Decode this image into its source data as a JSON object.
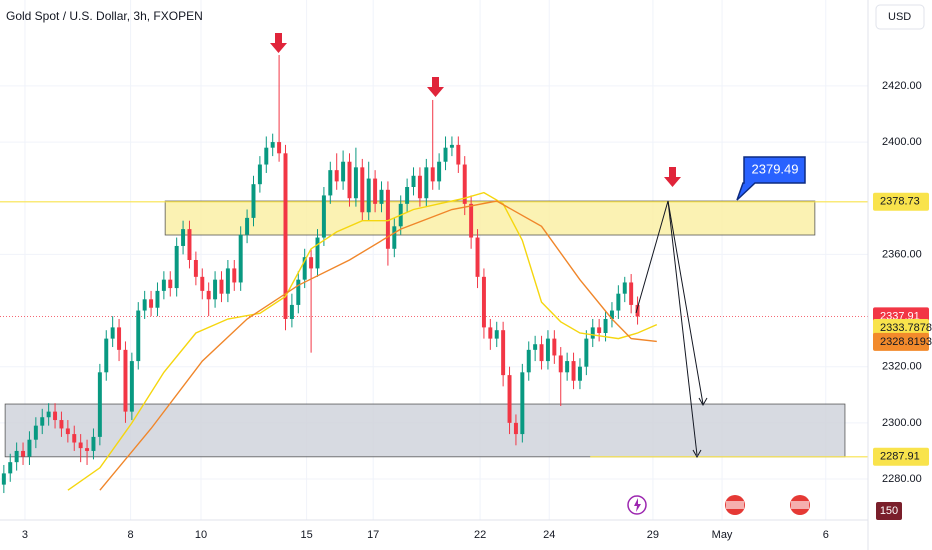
{
  "chart_data": {
    "type": "candlestick",
    "title": "Gold Spot / U.S. Dollar, 3h, FXOPEN",
    "currency": "USD",
    "volume_label": "150",
    "up_color": "#089981",
    "down_color": "#f23645",
    "grid": true,
    "xlim": [
      -0.6,
      135.0
    ],
    "ylim": [
      2265.4,
      2450.6
    ],
    "xticks": [
      {
        "value": 3.3,
        "label": "3"
      },
      {
        "value": 19.8,
        "label": "8"
      },
      {
        "value": 30.8,
        "label": "10"
      },
      {
        "value": 47.3,
        "label": "15"
      },
      {
        "value": 57.7,
        "label": "17"
      },
      {
        "value": 74.4,
        "label": "22"
      },
      {
        "value": 85.2,
        "label": "24"
      },
      {
        "value": 101.4,
        "label": "29"
      },
      {
        "value": 112.2,
        "label": "May"
      },
      {
        "value": 128.4,
        "label": "6"
      }
    ],
    "yticks": [
      {
        "value": 2280,
        "label": "2280.00"
      },
      {
        "value": 2300,
        "label": "2300.00"
      },
      {
        "value": 2320,
        "label": "2320.00"
      },
      {
        "value": 2360,
        "label": "2360.00"
      },
      {
        "value": 2400,
        "label": "2400.00"
      },
      {
        "value": 2420,
        "label": "2420.00"
      }
    ],
    "candles": {
      "open": [
        2278,
        2282,
        2286,
        2290,
        2288,
        2294,
        2299,
        2302,
        2304,
        2301,
        2298,
        2296,
        2293,
        2291,
        2290,
        2295,
        2318,
        2330,
        2334,
        2326,
        2304,
        2322,
        2340,
        2344,
        2341,
        2347,
        2351,
        2348,
        2363,
        2369,
        2358,
        2352,
        2347,
        2344,
        2351,
        2346,
        2355,
        2350,
        2367,
        2373,
        2385,
        2392,
        2398,
        2400,
        2396,
        2337,
        2342,
        2351,
        2359,
        2355,
        2366,
        2381,
        2390,
        2386,
        2393,
        2380,
        2391,
        2375,
        2387,
        2378,
        2383,
        2362,
        2370,
        2378,
        2384,
        2388,
        2380,
        2391,
        2386,
        2393,
        2398,
        2399,
        2392,
        2378,
        2366,
        2352,
        2334,
        2330,
        2333,
        2317,
        2300,
        2296,
        2318,
        2326,
        2328,
        2322,
        2330,
        2324,
        2318,
        2322,
        2315,
        2320,
        2330,
        2334,
        2332,
        2337,
        2340,
        2346,
        2350,
        2342
      ],
      "high": [
        2285,
        2289,
        2293,
        2293,
        2297,
        2302,
        2305,
        2307,
        2307,
        2304,
        2301,
        2299,
        2296,
        2294,
        2298,
        2321,
        2333,
        2338,
        2337,
        2329,
        2325,
        2343,
        2347,
        2347,
        2350,
        2354,
        2354,
        2366,
        2372,
        2372,
        2361,
        2355,
        2350,
        2354,
        2354,
        2358,
        2358,
        2370,
        2376,
        2388,
        2395,
        2402,
        2403,
        2431,
        2399,
        2346,
        2354,
        2362,
        2362,
        2369,
        2384,
        2393,
        2396,
        2397,
        2396,
        2398,
        2394,
        2393,
        2390,
        2386,
        2386,
        2373,
        2381,
        2387,
        2391,
        2391,
        2394,
        2415,
        2396,
        2402,
        2402,
        2402,
        2395,
        2381,
        2369,
        2355,
        2337,
        2336,
        2336,
        2320,
        2303,
        2321,
        2329,
        2331,
        2331,
        2333,
        2333,
        2327,
        2325,
        2325,
        2323,
        2333,
        2337,
        2337,
        2340,
        2343,
        2349,
        2352,
        2353,
        2345
      ],
      "low": [
        2275,
        2279,
        2283,
        2285,
        2285,
        2291,
        2296,
        2299,
        2298,
        2295,
        2293,
        2290,
        2286,
        2285,
        2287,
        2292,
        2315,
        2327,
        2322,
        2300,
        2301,
        2319,
        2337,
        2338,
        2338,
        2344,
        2345,
        2345,
        2360,
        2355,
        2349,
        2344,
        2338,
        2341,
        2343,
        2343,
        2347,
        2347,
        2364,
        2370,
        2382,
        2389,
        2395,
        2393,
        2333,
        2334,
        2339,
        2348,
        2325,
        2352,
        2363,
        2378,
        2383,
        2383,
        2377,
        2377,
        2372,
        2372,
        2375,
        2375,
        2356,
        2359,
        2367,
        2375,
        2381,
        2377,
        2377,
        2383,
        2383,
        2390,
        2395,
        2389,
        2374,
        2362,
        2348,
        2330,
        2326,
        2327,
        2313,
        2296,
        2292,
        2293,
        2315,
        2322,
        2319,
        2319,
        2321,
        2306,
        2315,
        2312,
        2312,
        2317,
        2327,
        2329,
        2329,
        2334,
        2337,
        2343,
        2339,
        2335
      ],
      "close": [
        2282,
        2286,
        2290,
        2288,
        2294,
        2299,
        2302,
        2304,
        2301,
        2298,
        2296,
        2293,
        2291,
        2290,
        2295,
        2318,
        2330,
        2334,
        2326,
        2304,
        2322,
        2340,
        2344,
        2341,
        2347,
        2351,
        2348,
        2363,
        2369,
        2358,
        2352,
        2347,
        2344,
        2351,
        2346,
        2355,
        2350,
        2367,
        2373,
        2385,
        2392,
        2398,
        2400,
        2396,
        2337,
        2342,
        2351,
        2359,
        2355,
        2366,
        2381,
        2390,
        2386,
        2393,
        2380,
        2391,
        2375,
        2387,
        2378,
        2383,
        2362,
        2370,
        2378,
        2384,
        2388,
        2380,
        2391,
        2386,
        2393,
        2398,
        2399,
        2392,
        2378,
        2366,
        2352,
        2334,
        2330,
        2333,
        2317,
        2300,
        2296,
        2318,
        2326,
        2328,
        2322,
        2330,
        2324,
        2318,
        2322,
        2315,
        2320,
        2330,
        2334,
        2332,
        2337,
        2340,
        2346,
        2350,
        2342,
        2337.91
      ]
    },
    "ma_lines": [
      {
        "color": "#f5d60f",
        "x": [
          10,
          15,
          20,
          25,
          30,
          35,
          40,
          44,
          48,
          52,
          56,
          60,
          64,
          68,
          72,
          75,
          78,
          81,
          84,
          87,
          90,
          93,
          96,
          99,
          102
        ],
        "values": [
          2276,
          2284,
          2300,
          2318,
          2332,
          2337,
          2339,
          2345,
          2362,
          2368,
          2372,
          2372,
          2376,
          2378,
          2380,
          2382,
          2378,
          2365,
          2343,
          2336,
          2332,
          2331,
          2330,
          2332,
          2335
        ]
      },
      {
        "color": "#f0862a",
        "x": [
          15,
          23,
          31,
          38,
          46,
          54,
          62,
          70,
          77,
          84,
          90,
          95,
          98,
          102
        ],
        "values": [
          2276,
          2298,
          2322,
          2337,
          2349,
          2358,
          2369,
          2376,
          2379,
          2370,
          2351,
          2337,
          2330,
          2329
        ]
      }
    ],
    "zones": [
      {
        "x": [
          25.2,
          126.7
        ],
        "ylim": [
          2366.9,
          2379.0
        ],
        "color": "#fbf0a6",
        "border": "#3a3a3a"
      },
      {
        "x": [
          0.2,
          131.4
        ],
        "ylim": [
          2287.9,
          2306.7
        ],
        "color": "#d1d4dc",
        "border": "#3a3a3a"
      }
    ],
    "price_badges": [
      {
        "value": 2378.73,
        "color": "#f9e34c",
        "text_color": "#131722",
        "line_from": -0.6
      },
      {
        "value": 2337.91,
        "color": "#f23645",
        "text_color": "#ffffff",
        "line_from": -0.6
      },
      {
        "value": 2333.7878,
        "color": "#f9e34c",
        "text_color": "#131722"
      },
      {
        "value": 2328.8193,
        "color": "#f28a2b",
        "text_color": "#131722"
      },
      {
        "value": 2287.91,
        "color": "#f9e34c",
        "text_color": "#131722",
        "line_from": 91.6
      }
    ],
    "callout": {
      "label": "2379.49",
      "value": 2379.49
    }
  }
}
